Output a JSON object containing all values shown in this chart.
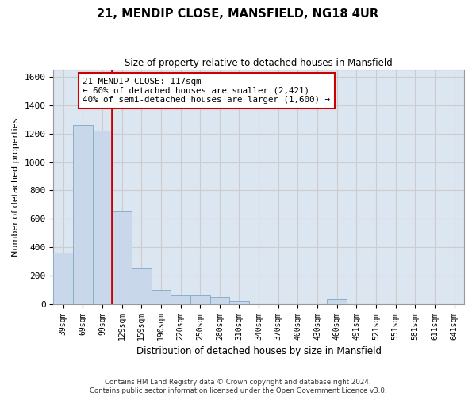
{
  "title": "21, MENDIP CLOSE, MANSFIELD, NG18 4UR",
  "subtitle": "Size of property relative to detached houses in Mansfield",
  "xlabel": "Distribution of detached houses by size in Mansfield",
  "ylabel": "Number of detached properties",
  "footnote1": "Contains HM Land Registry data © Crown copyright and database right 2024.",
  "footnote2": "Contains public sector information licensed under the Open Government Licence v3.0.",
  "property_label": "21 MENDIP CLOSE: 117sqm",
  "annotation_line1": "← 60% of detached houses are smaller (2,421)",
  "annotation_line2": "40% of semi-detached houses are larger (1,600) →",
  "bar_color": "#c8d8ea",
  "bar_edge_color": "#8aafc8",
  "vline_color": "#cc0000",
  "annotation_box_edge": "#cc0000",
  "annotation_box_face": "#ffffff",
  "grid_color": "#cccccc",
  "background_color": "#dce6f0",
  "categories": [
    "39sqm",
    "69sqm",
    "99sqm",
    "129sqm",
    "159sqm",
    "190sqm",
    "220sqm",
    "250sqm",
    "280sqm",
    "310sqm",
    "340sqm",
    "370sqm",
    "400sqm",
    "430sqm",
    "460sqm",
    "491sqm",
    "521sqm",
    "551sqm",
    "581sqm",
    "611sqm",
    "641sqm"
  ],
  "values": [
    360,
    1260,
    1220,
    650,
    250,
    100,
    60,
    60,
    50,
    20,
    0,
    0,
    0,
    0,
    30,
    0,
    0,
    0,
    0,
    0,
    0
  ],
  "ylim": [
    0,
    1650
  ],
  "yticks": [
    0,
    200,
    400,
    600,
    800,
    1000,
    1200,
    1400,
    1600
  ],
  "vline_x": 2.5,
  "figsize": [
    6.0,
    5.0
  ],
  "dpi": 100
}
